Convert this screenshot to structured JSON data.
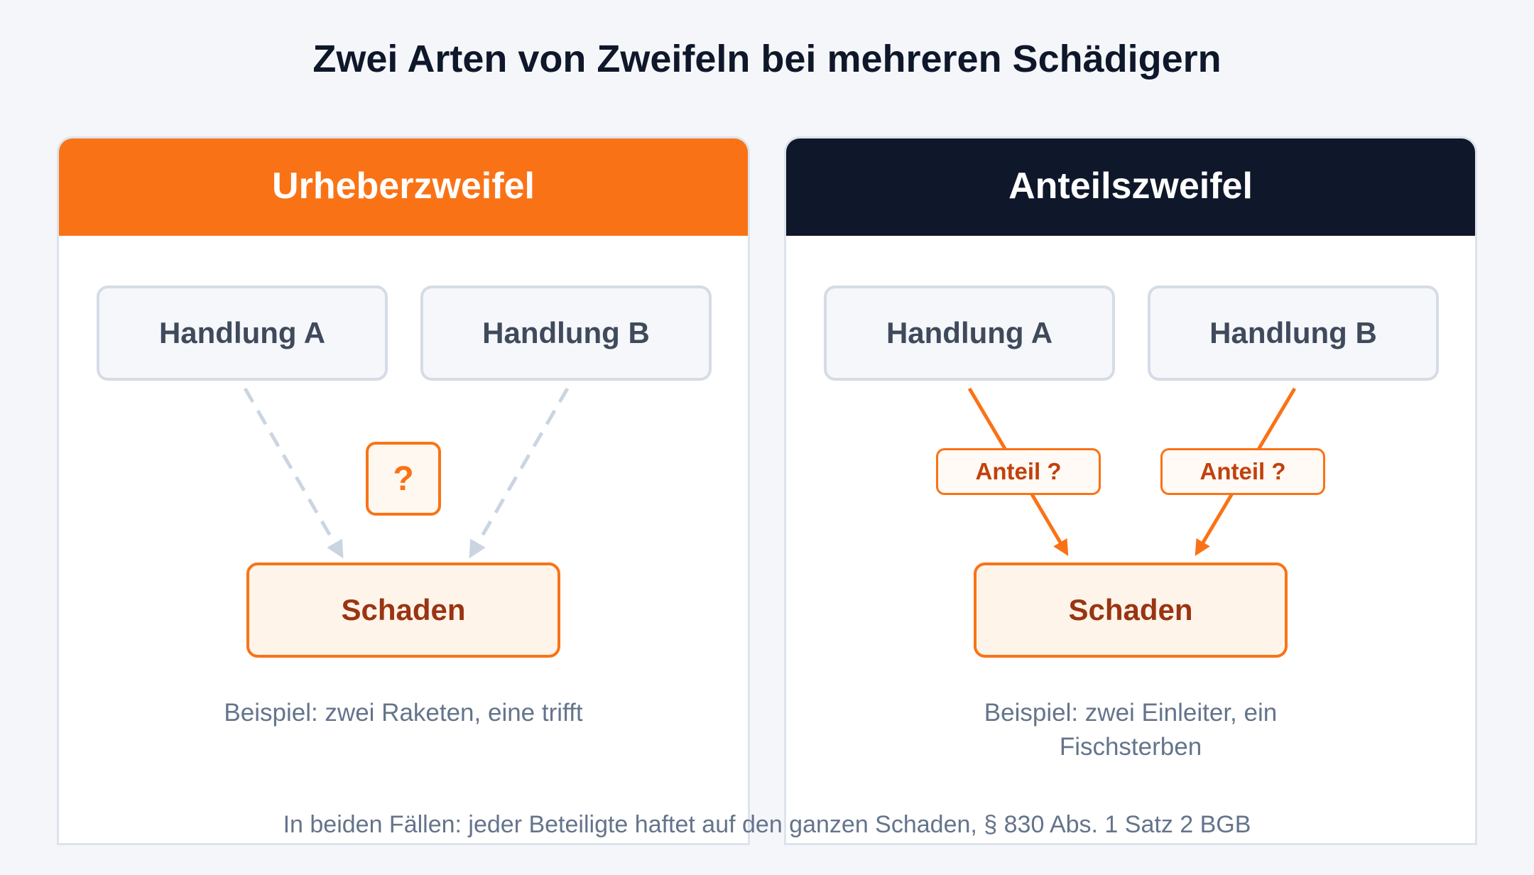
{
  "title": "Zwei Arten von Zweifeln bei mehreren Schädigern",
  "left_panel": {
    "heading": "Urheberzweifel",
    "act_a": "Handlung A",
    "act_b": "Handlung B",
    "question_mark": "?",
    "harm": "Schaden",
    "example": "Beispiel: zwei Raketen, eine trifft"
  },
  "right_panel": {
    "heading": "Anteilszweifel",
    "act_a": "Handlung A",
    "act_b": "Handlung B",
    "share_a": "Anteil ?",
    "share_b": "Anteil ?",
    "harm": "Schaden",
    "example": "Beispiel: zwei Einleiter, ein Fischsterben"
  },
  "footer": "In beiden Fällen: jeder Beteiligte haftet auf den ganzen Schaden, § 830 Abs. 1 Satz 2 BGB",
  "colors": {
    "accent_orange": "#f97316",
    "dark_navy": "#0f172a",
    "dashed_arrow": "#cbd5e1",
    "harm_text": "#9a3412",
    "share_text": "#c2410c"
  }
}
